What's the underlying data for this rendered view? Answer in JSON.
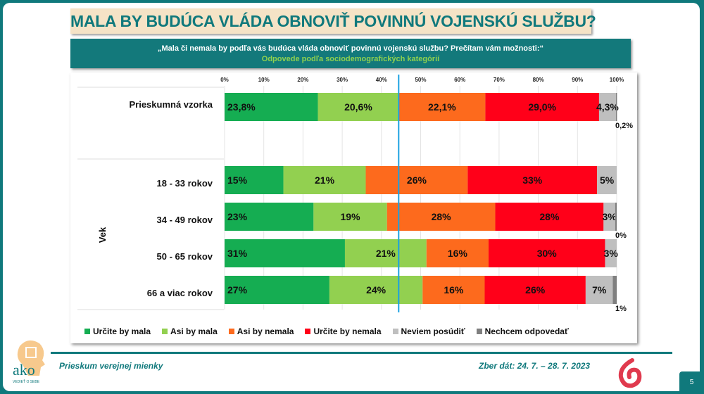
{
  "title": "MALA BY BUDÚCA VLÁDA OBNOVIŤ POVINNÚ VOJENSKÚ SLUŽBU?",
  "question": "„Mala či nemala by podľa vás budúca vláda obnoviť povinnú vojenskú službu? Prečítam vám možnosti:“",
  "subtitle": "Odpovede podľa sociodemografických kategórií",
  "footer": {
    "left": "Prieskum verejnej mienky",
    "right": "Zber dát: 24. 7. – 28. 7. 2023",
    "page": "5",
    "logo": "ako",
    "logo_tagline": "VEDIEŤ O SEBE"
  },
  "chart_data": {
    "type": "bar",
    "orientation": "horizontal",
    "stacked": "100%",
    "xlim": [
      0,
      100
    ],
    "xticks": [
      "0%",
      "10%",
      "20%",
      "30%",
      "40%",
      "50%",
      "60%",
      "70%",
      "80%",
      "90%",
      "100%"
    ],
    "group_label": "Vek",
    "categories": [
      "Prieskumná vzorka",
      "18 - 33 rokov",
      "34 - 49 rokov",
      "50 - 65 rokov",
      "66 a viac rokov"
    ],
    "series": [
      {
        "name": "Určite by mala",
        "color": "#15ad52",
        "values": [
          23.8,
          15,
          23,
          31,
          27
        ],
        "labels": [
          "23,8%",
          "15%",
          "23%",
          "31%",
          "27%"
        ]
      },
      {
        "name": "Asi by mala",
        "color": "#92d050",
        "values": [
          20.6,
          21,
          19,
          21,
          24
        ],
        "labels": [
          "20,6%",
          "21%",
          "19%",
          "21%",
          "24%"
        ]
      },
      {
        "name": "Asi by nemala",
        "color": "#fd6a1d",
        "values": [
          22.1,
          26,
          28,
          16,
          16
        ],
        "labels": [
          "22,1%",
          "26%",
          "28%",
          "16%",
          "16%"
        ]
      },
      {
        "name": "Určite by nemala",
        "color": "#ff0019",
        "values": [
          29.0,
          33,
          28,
          30,
          26
        ],
        "labels": [
          "29,0%",
          "33%",
          "28%",
          "30%",
          "26%"
        ]
      },
      {
        "name": "Neviem posúdiť",
        "color": "#bfbfbf",
        "values": [
          4.3,
          5,
          3,
          3,
          7
        ],
        "labels": [
          "4,3%",
          "5%",
          "3%",
          "3%",
          "7%"
        ]
      },
      {
        "name": "Nechcem odpovedať",
        "color": "#7f7f7f",
        "values": [
          0.2,
          0,
          0.4,
          0,
          1
        ],
        "labels": [
          "0,2%",
          "",
          "0%",
          "",
          "1%"
        ]
      }
    ],
    "reference_line": {
      "color": "#1ba1e2"
    },
    "grid": true,
    "legend": "bottom"
  }
}
